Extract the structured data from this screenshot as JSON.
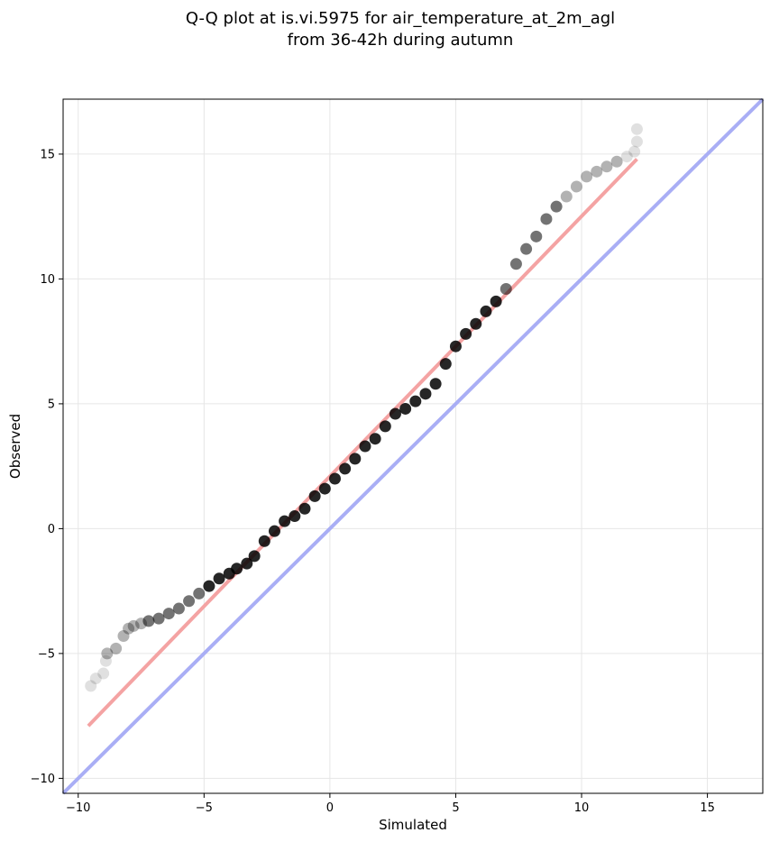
{
  "chart_data": {
    "type": "scatter",
    "title_lines": [
      "Q-Q plot at is.vi.5975 for air_temperature_at_2m_agl",
      "from 36-42h during autumn"
    ],
    "xlabel": "Simulated",
    "ylabel": "Observed",
    "xlim": [
      -10.6,
      17.2
    ],
    "ylim": [
      -10.6,
      17.2
    ],
    "xticks": [
      -10,
      -5,
      0,
      5,
      10,
      15
    ],
    "yticks": [
      -10,
      -5,
      0,
      5,
      10,
      15
    ],
    "xtick_labels": [
      "−10",
      "−5",
      "0",
      "5",
      "10",
      "15"
    ],
    "ytick_labels": [
      "−10",
      "−5",
      "0",
      "5",
      "10",
      "15"
    ],
    "grid": true,
    "colors": {
      "points": "#000000",
      "fit_line": "#f4a3a3",
      "identity_line": "#a9aef5",
      "grid": "#e6e6e6"
    },
    "series": [
      {
        "kind": "points",
        "x": [
          -9.5,
          -9.3,
          -9.0,
          -8.9,
          -8.85,
          -8.5,
          -8.2,
          -8.0,
          -7.8,
          -7.5,
          -7.2,
          -6.8,
          -6.4,
          -6.0,
          -5.6,
          -5.2,
          -4.8,
          -4.4,
          -4.0,
          -3.7,
          -3.3,
          -3.0,
          -2.6,
          -2.2,
          -1.8,
          -1.4,
          -1.0,
          -0.6,
          -0.2,
          0.2,
          0.6,
          1.0,
          1.4,
          1.8,
          2.2,
          2.6,
          3.0,
          3.4,
          3.8,
          4.2,
          4.6,
          5.0,
          5.4,
          5.8,
          6.2,
          6.6,
          7.0,
          7.4,
          7.8,
          8.2,
          8.6,
          9.0,
          9.4,
          9.8,
          10.2,
          10.6,
          11.0,
          11.4,
          11.8,
          12.1,
          12.2,
          12.2
        ],
        "y": [
          -6.3,
          -6.0,
          -5.8,
          -5.3,
          -5.0,
          -4.8,
          -4.3,
          -4.0,
          -3.9,
          -3.8,
          -3.7,
          -3.6,
          -3.4,
          -3.2,
          -2.9,
          -2.6,
          -2.3,
          -2.0,
          -1.8,
          -1.6,
          -1.4,
          -1.1,
          -0.5,
          -0.1,
          0.3,
          0.5,
          0.8,
          1.3,
          1.6,
          2.0,
          2.4,
          2.8,
          3.3,
          3.6,
          4.1,
          4.6,
          4.8,
          5.1,
          5.4,
          5.8,
          6.6,
          7.3,
          7.8,
          8.2,
          8.7,
          9.1,
          9.6,
          10.6,
          11.2,
          11.7,
          12.4,
          12.9,
          13.3,
          13.7,
          14.1,
          14.3,
          14.5,
          14.7,
          14.9,
          15.1,
          15.5,
          16.0
        ]
      },
      {
        "kind": "fit_line",
        "x": [
          -9.6,
          12.2
        ],
        "y": [
          -7.9,
          14.8
        ]
      },
      {
        "kind": "identity_line",
        "x": [
          -10.6,
          17.2
        ],
        "y": [
          -10.6,
          17.2
        ]
      }
    ]
  }
}
